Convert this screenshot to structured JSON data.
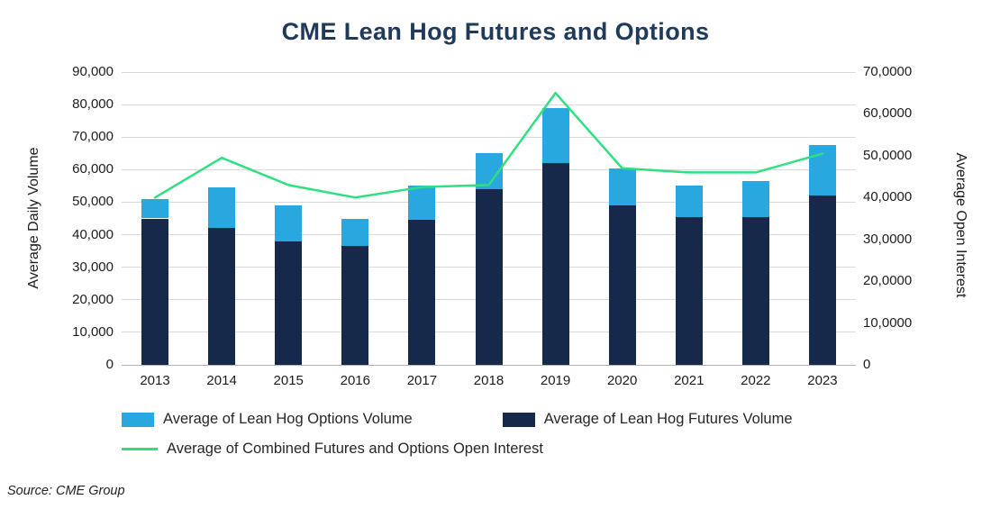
{
  "chart_data": {
    "type": "combo",
    "title": "CME Lean Hog Futures and Options",
    "source": "Source: CME Group",
    "grid": "horizontal",
    "legend_position": "bottom",
    "categories": [
      "2013",
      "2014",
      "2015",
      "2016",
      "2017",
      "2018",
      "2019",
      "2020",
      "2021",
      "2022",
      "2023"
    ],
    "series": [
      {
        "name": "Average of Lean Hog Futures Volume",
        "type": "bar",
        "stack": "volume",
        "axis": "left",
        "color": "#16294b",
        "values": [
          45000,
          42000,
          38000,
          36500,
          44500,
          54000,
          62000,
          49000,
          45500,
          45500,
          52000
        ]
      },
      {
        "name": "Average of Lean Hog Options Volume",
        "type": "bar",
        "stack": "volume",
        "axis": "left",
        "color": "#29a8e0",
        "values": [
          6000,
          12500,
          11000,
          8500,
          10500,
          11000,
          17000,
          11500,
          9500,
          11000,
          15500
        ]
      },
      {
        "name": "Average of Combined Futures and Options Open Interest",
        "type": "line",
        "axis": "right",
        "color": "#2fe081",
        "values": [
          40000,
          49500,
          43000,
          40000,
          42500,
          43000,
          65000,
          47000,
          46000,
          46000,
          50500
        ]
      }
    ],
    "left_axis": {
      "label": "Average Daily Volume",
      "min": 0,
      "max": 90000,
      "tick_labels": [
        "90,000",
        "80,000",
        "70,000",
        "60,000",
        "50,000",
        "40,000",
        "30,000",
        "20,000",
        "10,000",
        "0"
      ]
    },
    "right_axis": {
      "label": "Average Open Interest",
      "min": 0,
      "max": 70000,
      "tick_labels": [
        "70,0000",
        "60,0000",
        "50,0000",
        "40,0000",
        "30,0000",
        "20,0000",
        "10,0000",
        "0"
      ]
    },
    "legend": [
      {
        "label": "Average of Lean Hog Options Volume",
        "marker": "square",
        "color": "#29a8e0"
      },
      {
        "label": "Average of Lean Hog Futures Volume",
        "marker": "square",
        "color": "#16294b"
      },
      {
        "label": "Average of Combined Futures and Options Open Interest",
        "marker": "line",
        "color": "#2fe081"
      }
    ]
  }
}
